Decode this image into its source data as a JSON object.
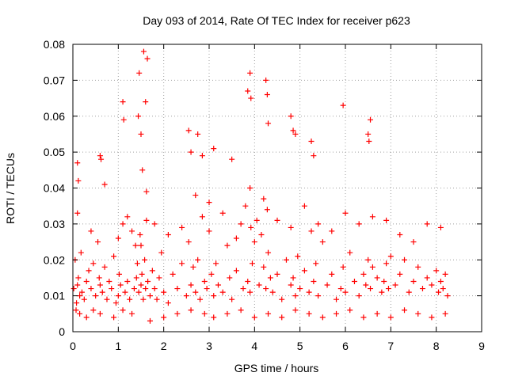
{
  "chart_data": {
    "type": "scatter",
    "title": "Day 093 of 2014, Rate Of TEC Index for receiver p623",
    "xlabel": "GPS time / hours",
    "ylabel": "ROTI / TECUs",
    "xlim": [
      0,
      9
    ],
    "ylim": [
      0,
      0.08
    ],
    "xticks": [
      0,
      1,
      2,
      3,
      4,
      5,
      6,
      7,
      8,
      9
    ],
    "yticks": [
      0,
      0.01,
      0.02,
      0.03,
      0.04,
      0.05,
      0.06,
      0.07,
      0.08
    ],
    "ytick_labels": [
      "0",
      "0.01",
      "0.02",
      "0.03",
      "0.04",
      "0.05",
      "0.06",
      "0.07",
      "0.08"
    ],
    "grid": true,
    "marker": "+",
    "color": "#ff0000",
    "series": [
      {
        "name": "ROTI",
        "x": [
          0.02,
          0.05,
          0.08,
          0.1,
          0.12,
          0.15,
          0.18,
          0.2,
          0.25,
          0.3,
          0.35,
          0.4,
          0.45,
          0.5,
          0.55,
          0.58,
          0.6,
          0.65,
          0.7,
          0.75,
          0.8,
          0.85,
          0.9,
          0.95,
          1.0,
          1.02,
          1.05,
          1.1,
          1.15,
          1.2,
          1.25,
          1.3,
          1.35,
          1.38,
          1.4,
          1.42,
          1.45,
          1.48,
          1.5,
          1.52,
          1.55,
          1.58,
          1.6,
          1.62,
          1.65,
          1.7,
          1.75,
          1.8,
          1.85,
          1.9,
          1.95,
          2.0,
          2.1,
          2.2,
          2.3,
          2.4,
          2.5,
          2.55,
          2.6,
          2.65,
          2.7,
          2.75,
          2.8,
          2.85,
          2.9,
          2.95,
          3.0,
          3.05,
          3.1,
          3.15,
          3.2,
          3.3,
          3.4,
          3.45,
          3.5,
          3.6,
          3.7,
          3.75,
          3.8,
          3.85,
          3.9,
          3.92,
          3.95,
          4.0,
          4.05,
          4.1,
          4.15,
          4.2,
          4.25,
          4.28,
          4.3,
          4.35,
          4.4,
          4.5,
          4.6,
          4.7,
          4.8,
          4.85,
          4.9,
          4.95,
          5.0,
          5.1,
          5.2,
          5.25,
          5.3,
          5.35,
          5.4,
          5.5,
          5.6,
          5.7,
          5.8,
          5.9,
          5.95,
          6.0,
          6.1,
          6.2,
          6.3,
          6.4,
          6.45,
          6.5,
          6.55,
          6.6,
          6.7,
          6.8,
          6.85,
          6.9,
          6.95,
          7.0,
          7.1,
          7.2,
          7.3,
          7.4,
          7.5,
          7.6,
          7.7,
          7.8,
          7.9,
          8.0,
          8.05,
          8.1,
          8.15,
          8.2,
          8.25,
          0.07,
          0.15,
          0.3,
          0.45,
          0.6,
          0.9,
          1.1,
          1.3,
          1.7,
          2.0,
          2.3,
          2.6,
          2.9,
          3.1,
          3.4,
          3.7,
          4.0,
          4.3,
          4.6,
          4.9,
          5.2,
          5.5,
          5.8,
          6.1,
          6.4,
          6.7,
          7.0,
          7.3,
          7.6,
          7.9,
          8.2,
          0.1,
          0.4,
          0.7,
          1.0,
          1.2,
          1.5,
          1.8,
          2.1,
          2.4,
          2.7,
          3.0,
          3.3,
          3.6,
          3.9,
          4.2,
          4.5,
          4.8,
          5.1,
          5.4,
          5.7,
          6.0,
          6.3,
          6.6,
          6.9,
          7.2,
          7.5,
          7.8,
          8.1,
          1.44,
          1.46,
          1.5,
          1.53,
          1.56,
          1.6,
          1.62,
          1.64,
          1.1,
          1.12,
          2.55,
          2.6,
          2.75,
          2.85,
          3.1,
          3.5,
          3.85,
          3.9,
          3.92,
          4.25,
          4.28,
          4.3,
          4.8,
          4.85,
          4.9,
          5.25,
          5.3,
          5.95,
          6.5,
          6.52,
          6.55,
          0.1,
          0.12,
          0.6,
          0.62
        ],
        "y": [
          0.012,
          0.02,
          0.008,
          0.013,
          0.015,
          0.01,
          0.022,
          0.011,
          0.009,
          0.014,
          0.017,
          0.012,
          0.019,
          0.01,
          0.025,
          0.015,
          0.013,
          0.011,
          0.018,
          0.009,
          0.014,
          0.012,
          0.021,
          0.008,
          0.01,
          0.016,
          0.013,
          0.03,
          0.011,
          0.014,
          0.009,
          0.028,
          0.012,
          0.024,
          0.015,
          0.019,
          0.011,
          0.027,
          0.013,
          0.016,
          0.009,
          0.02,
          0.012,
          0.031,
          0.014,
          0.01,
          0.017,
          0.012,
          0.009,
          0.015,
          0.022,
          0.011,
          0.008,
          0.016,
          0.012,
          0.019,
          0.01,
          0.025,
          0.013,
          0.018,
          0.011,
          0.02,
          0.009,
          0.032,
          0.014,
          0.012,
          0.028,
          0.016,
          0.01,
          0.019,
          0.013,
          0.011,
          0.024,
          0.015,
          0.009,
          0.017,
          0.03,
          0.012,
          0.035,
          0.014,
          0.011,
          0.029,
          0.019,
          0.025,
          0.031,
          0.013,
          0.027,
          0.018,
          0.012,
          0.034,
          0.022,
          0.015,
          0.011,
          0.016,
          0.009,
          0.02,
          0.013,
          0.015,
          0.01,
          0.021,
          0.012,
          0.017,
          0.011,
          0.028,
          0.014,
          0.019,
          0.01,
          0.025,
          0.013,
          0.016,
          0.009,
          0.012,
          0.018,
          0.011,
          0.022,
          0.014,
          0.01,
          0.016,
          0.013,
          0.02,
          0.012,
          0.018,
          0.015,
          0.011,
          0.014,
          0.019,
          0.012,
          0.021,
          0.013,
          0.016,
          0.02,
          0.011,
          0.014,
          0.018,
          0.012,
          0.015,
          0.013,
          0.017,
          0.011,
          0.014,
          0.012,
          0.016,
          0.01,
          0.006,
          0.005,
          0.004,
          0.006,
          0.005,
          0.004,
          0.006,
          0.005,
          0.003,
          0.004,
          0.005,
          0.006,
          0.005,
          0.004,
          0.005,
          0.006,
          0.004,
          0.005,
          0.004,
          0.006,
          0.005,
          0.004,
          0.005,
          0.006,
          0.004,
          0.005,
          0.004,
          0.006,
          0.005,
          0.004,
          0.005,
          0.033,
          0.028,
          0.041,
          0.026,
          0.032,
          0.024,
          0.03,
          0.027,
          0.029,
          0.038,
          0.036,
          0.033,
          0.026,
          0.04,
          0.037,
          0.031,
          0.029,
          0.035,
          0.03,
          0.028,
          0.033,
          0.03,
          0.032,
          0.031,
          0.027,
          0.025,
          0.03,
          0.029,
          0.06,
          0.072,
          0.055,
          0.045,
          0.078,
          0.064,
          0.039,
          0.076,
          0.064,
          0.059,
          0.056,
          0.05,
          0.055,
          0.049,
          0.051,
          0.048,
          0.067,
          0.072,
          0.065,
          0.07,
          0.066,
          0.058,
          0.06,
          0.056,
          0.055,
          0.053,
          0.049,
          0.063,
          0.055,
          0.053,
          0.059,
          0.047,
          0.042,
          0.049,
          0.048
        ]
      }
    ]
  }
}
